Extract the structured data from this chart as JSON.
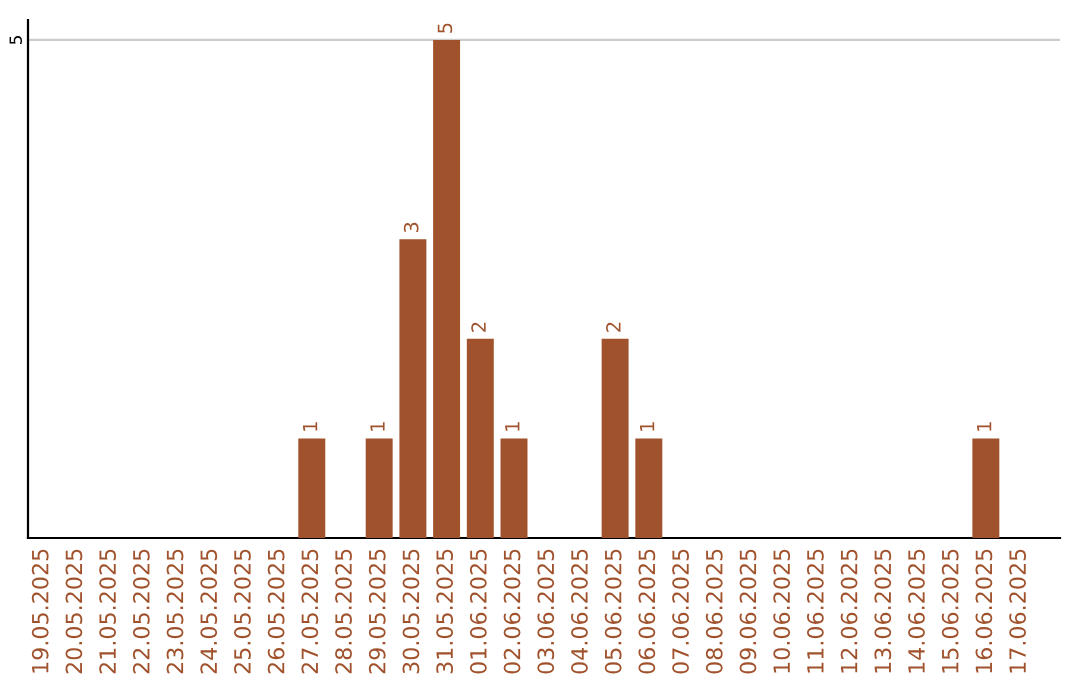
{
  "chart_data": {
    "type": "bar",
    "categories": [
      "19.05.2025",
      "20.05.2025",
      "21.05.2025",
      "22.05.2025",
      "23.05.2025",
      "24.05.2025",
      "25.05.2025",
      "26.05.2025",
      "27.05.2025",
      "28.05.2025",
      "29.05.2025",
      "30.05.2025",
      "31.05.2025",
      "01.06.2025",
      "02.06.2025",
      "03.06.2025",
      "04.06.2025",
      "05.06.2025",
      "06.06.2025",
      "07.06.2025",
      "08.06.2025",
      "09.06.2025",
      "10.06.2025",
      "11.06.2025",
      "12.06.2025",
      "13.06.2025",
      "14.06.2025",
      "15.06.2025",
      "16.06.2025",
      "17.06.2025"
    ],
    "values": [
      0,
      0,
      0,
      0,
      0,
      0,
      0,
      0,
      1,
      0,
      1,
      3,
      5,
      2,
      1,
      0,
      0,
      2,
      1,
      0,
      0,
      0,
      0,
      0,
      0,
      0,
      0,
      0,
      1,
      0
    ],
    "value_labels": [
      null,
      null,
      null,
      null,
      null,
      null,
      null,
      null,
      "1",
      null,
      "1",
      "3",
      "5",
      "2",
      "1",
      null,
      null,
      "2",
      "1",
      null,
      null,
      null,
      null,
      null,
      null,
      null,
      null,
      null,
      "1",
      null
    ],
    "color": "#a0522d",
    "ylim": [
      0,
      5.2
    ],
    "yticks": [
      5
    ],
    "grid": "y"
  }
}
